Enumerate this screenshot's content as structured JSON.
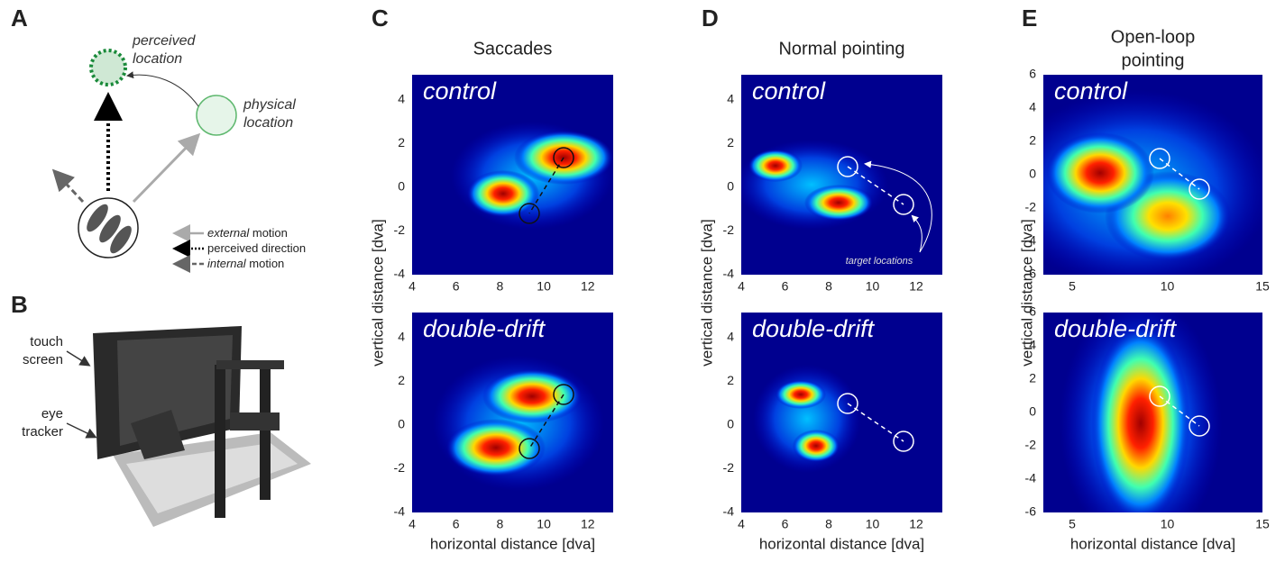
{
  "panels": {
    "A": {
      "letter": "A",
      "perceived": [
        "perceived",
        "location"
      ],
      "physical": [
        "physical",
        "location"
      ],
      "legend": [
        {
          "emph": "external",
          "text": "motion"
        },
        {
          "text": "perceived direction"
        },
        {
          "emph": "internal",
          "text": "motion"
        }
      ]
    },
    "B": {
      "letter": "B",
      "labels": [
        [
          "touch",
          "screen"
        ],
        [
          "eye",
          "tracker"
        ]
      ]
    },
    "C": {
      "letter": "C",
      "title": [
        "Saccades"
      ],
      "subplots": [
        {
          "label": "control"
        },
        {
          "label": "double-drift"
        }
      ],
      "xticks": [
        4,
        6,
        8,
        10,
        12
      ],
      "yticks": [
        -4,
        -2,
        0,
        2,
        4
      ],
      "xlabel": "horizontal distance [dva]",
      "ylabel": "vertical distance [dva]"
    },
    "D": {
      "letter": "D",
      "title": [
        "Normal pointing"
      ],
      "subplots": [
        {
          "label": "control"
        },
        {
          "label": "double-drift"
        }
      ],
      "xticks": [
        4,
        6,
        8,
        10,
        12
      ],
      "yticks": [
        -4,
        -2,
        0,
        2,
        4
      ],
      "xlabel": "horizontal distance [dva]",
      "ylabel": "vertical distance [dva]",
      "annotation": "target locations"
    },
    "E": {
      "letter": "E",
      "title": [
        "Open-loop",
        "pointing"
      ],
      "subplots": [
        {
          "label": "control"
        },
        {
          "label": "double-drift"
        }
      ],
      "xticks": [
        5,
        10,
        15
      ],
      "yticks": [
        -6,
        -4,
        -2,
        0,
        2,
        4,
        6
      ],
      "xlabel": "horizontal distance [dva]",
      "ylabel": "vertical distance [dva]"
    }
  }
}
